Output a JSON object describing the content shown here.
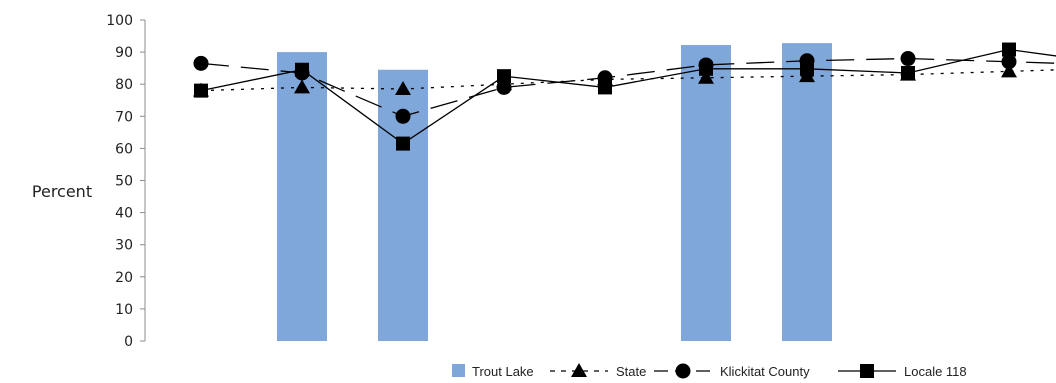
{
  "chart_data": {
    "type": "bar",
    "ylabel": "Percent",
    "ylim": [
      0,
      100
    ],
    "yticks": [
      0,
      10,
      20,
      30,
      40,
      50,
      60,
      70,
      80,
      90,
      100
    ],
    "grid": false,
    "legend_position": "bottom-right",
    "categories": [
      "",
      "",
      "",
      "",
      "",
      "",
      "",
      "",
      "",
      ""
    ],
    "series": [
      {
        "name": "Trout Lake",
        "kind": "bar",
        "color": "#7fa7d9",
        "values": [
          null,
          90,
          84.5,
          null,
          null,
          92.2,
          92.8,
          null,
          null,
          null
        ]
      },
      {
        "name": "State",
        "kind": "line",
        "dash": "dotted",
        "marker": "triangle",
        "values": [
          78,
          79,
          78.5,
          80,
          81.5,
          82,
          82.5,
          83,
          84,
          85
        ]
      },
      {
        "name": "Klickitat County",
        "kind": "line",
        "dash": "dashed",
        "marker": "circle",
        "values": [
          86.5,
          83.5,
          70,
          79,
          82,
          86,
          87.3,
          88,
          87,
          86
        ]
      },
      {
        "name": "Locale 118",
        "kind": "line",
        "dash": "solid",
        "marker": "square",
        "values": [
          78,
          84.5,
          61.5,
          82.5,
          79,
          84.8,
          84.8,
          83.5,
          90.8,
          86.5
        ]
      }
    ]
  }
}
